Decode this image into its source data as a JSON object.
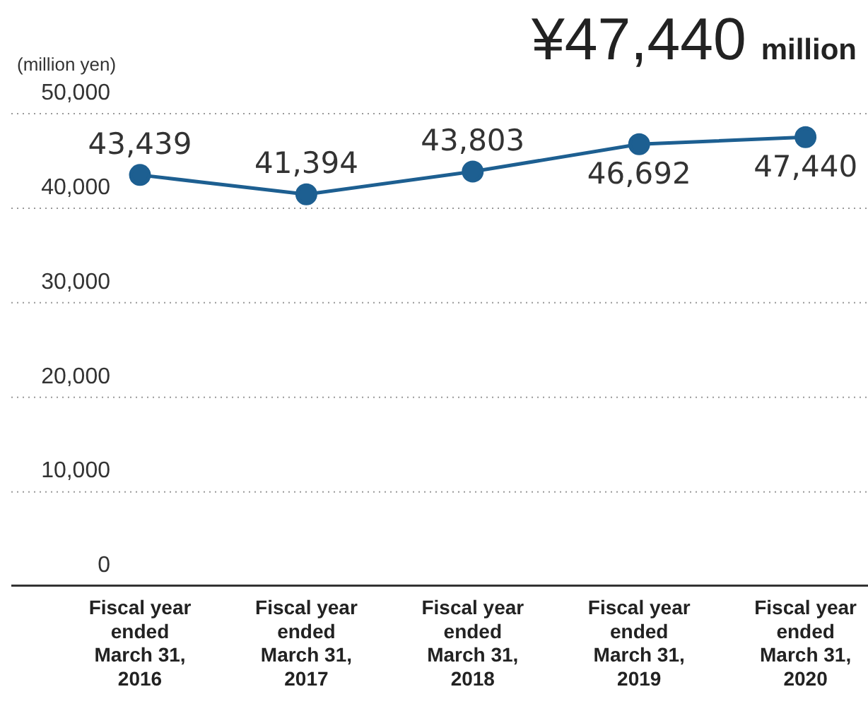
{
  "chart_data": {
    "type": "line",
    "title": "¥47,440 million",
    "ylabel": "(million yen)",
    "categories": [
      "Fiscal year ended March 31, 2016",
      "Fiscal year ended March 31, 2017",
      "Fiscal year ended March 31, 2018",
      "Fiscal year ended March 31, 2019",
      "Fiscal year ended March 31, 2020"
    ],
    "series": [
      {
        "color": "#1d5f91",
        "values": [
          43439,
          41394,
          43803,
          46692,
          47440
        ],
        "value_labels": [
          "43,439",
          "41,394",
          "43,803",
          "46,692",
          "47,440"
        ]
      }
    ],
    "ylim": [
      0,
      50000
    ],
    "yticks": [
      0,
      {
        "value": 10000,
        "label": "10,000"
      },
      {
        "value": 20000,
        "label": "20,000"
      },
      {
        "value": 30000,
        "label": "30,000"
      },
      {
        "value": 40000,
        "label": "40,000"
      },
      {
        "value": 50000,
        "label": "50,000"
      }
    ],
    "grid": "y",
    "legend": false,
    "marker": "circle",
    "line_style": "solid"
  }
}
